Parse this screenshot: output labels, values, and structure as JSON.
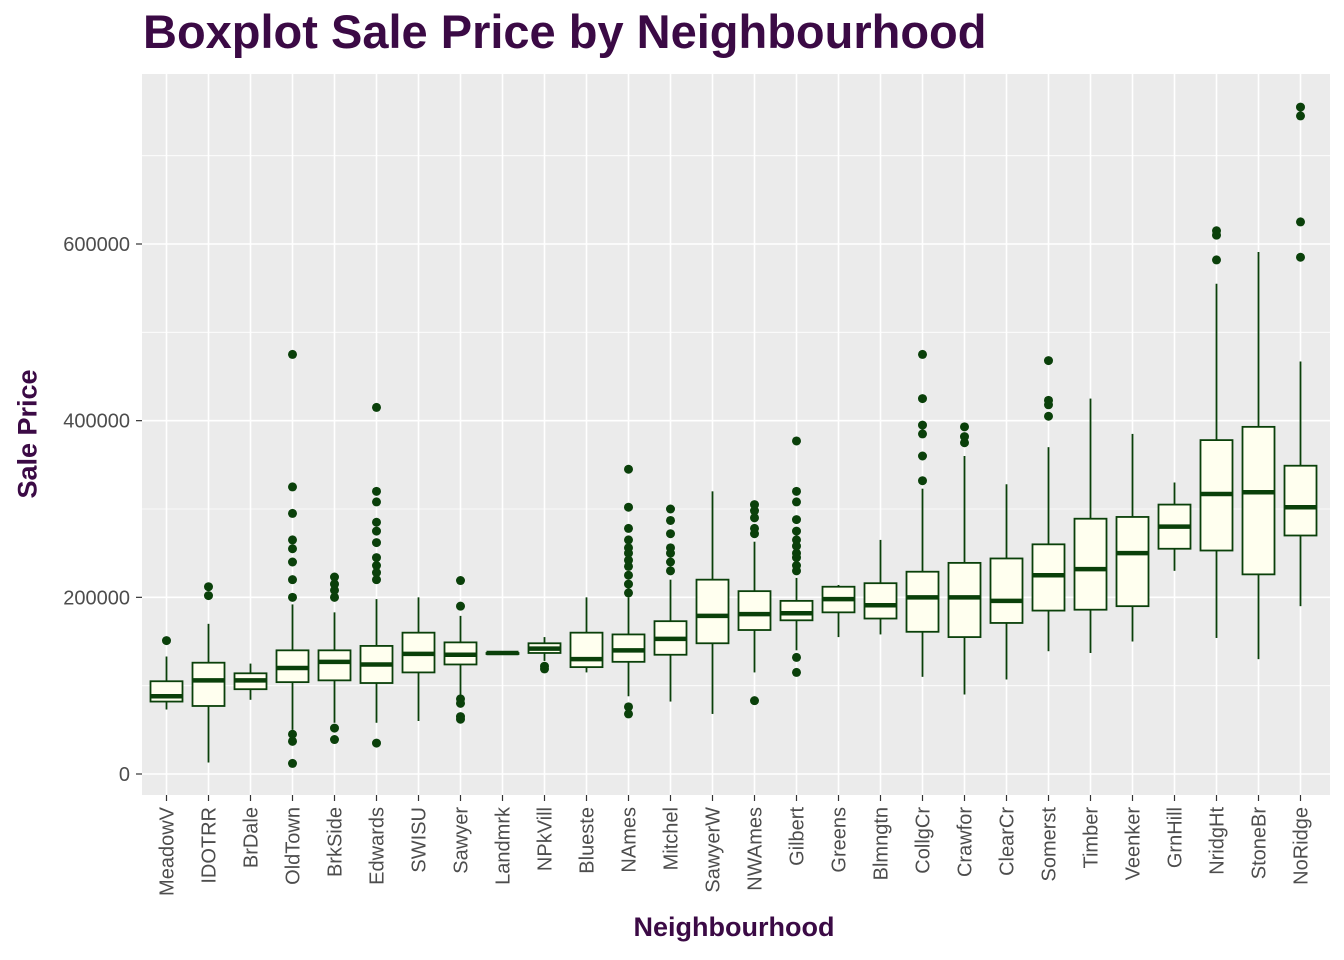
{
  "chart_data": {
    "type": "boxplot",
    "title": "Boxplot Sale Price by Neighbourhood",
    "xlabel": "Neighbourhood",
    "ylabel": "Sale Price",
    "ylim": [
      -20000,
      790000
    ],
    "yticks": [
      0,
      200000,
      400000,
      600000
    ],
    "ytick_labels": [
      "0",
      "200000",
      "400000",
      "600000"
    ],
    "grid": true,
    "colors": {
      "box_fill": "#ffffef",
      "stroke": "#0a400a",
      "panel": "#ebebeb",
      "grid": "#ffffff",
      "title": "#3b0a45"
    },
    "categories": [
      "MeadowV",
      "IDOTRR",
      "BrDale",
      "OldTown",
      "BrkSide",
      "Edwards",
      "SWISU",
      "Sawyer",
      "Landmrk",
      "NPkVill",
      "Blueste",
      "NAmes",
      "Mitchel",
      "SawyerW",
      "NWAmes",
      "Gilbert",
      "Greens",
      "Blmngtn",
      "CollgCr",
      "Crawfor",
      "ClearCr",
      "Somerst",
      "Timber",
      "Veenker",
      "GrnHill",
      "NridgHt",
      "StoneBr",
      "NoRidge"
    ],
    "boxes": [
      {
        "min": 73000,
        "q1": 82000,
        "median": 88000,
        "q3": 105000,
        "max": 133000,
        "outliers": [
          151000
        ]
      },
      {
        "min": 13000,
        "q1": 77000,
        "median": 106000,
        "q3": 126000,
        "max": 170000,
        "outliers": [
          202000,
          212000
        ]
      },
      {
        "min": 84000,
        "q1": 96000,
        "median": 106000,
        "q3": 114000,
        "max": 125000,
        "outliers": []
      },
      {
        "min": 50000,
        "q1": 104000,
        "median": 120000,
        "q3": 140000,
        "max": 192000,
        "outliers": [
          12000,
          37000,
          45000,
          200000,
          220000,
          240000,
          255000,
          265000,
          295000,
          325000,
          475000
        ]
      },
      {
        "min": 58000,
        "q1": 106000,
        "median": 127000,
        "q3": 140000,
        "max": 183000,
        "outliers": [
          39000,
          52000,
          200000,
          208000,
          215000,
          223000
        ]
      },
      {
        "min": 58000,
        "q1": 103000,
        "median": 124000,
        "q3": 145000,
        "max": 198000,
        "outliers": [
          35000,
          220000,
          228000,
          236000,
          245000,
          262000,
          275000,
          285000,
          308000,
          320000,
          415000
        ]
      },
      {
        "min": 60000,
        "q1": 115000,
        "median": 136000,
        "q3": 160000,
        "max": 200000,
        "outliers": []
      },
      {
        "min": 90000,
        "q1": 124000,
        "median": 135000,
        "q3": 149000,
        "max": 179000,
        "outliers": [
          62000,
          65000,
          80000,
          85000,
          190000,
          219000
        ]
      },
      {
        "min": 137000,
        "q1": 137000,
        "median": 137000,
        "q3": 137000,
        "max": 137000,
        "outliers": []
      },
      {
        "min": 128000,
        "q1": 137000,
        "median": 142000,
        "q3": 148000,
        "max": 155000,
        "outliers": [
          119000,
          122000
        ]
      },
      {
        "min": 115000,
        "q1": 121000,
        "median": 130000,
        "q3": 160000,
        "max": 200000,
        "outliers": []
      },
      {
        "min": 88000,
        "q1": 127000,
        "median": 140000,
        "q3": 158000,
        "max": 200000,
        "outliers": [
          68000,
          76000,
          205000,
          215000,
          225000,
          235000,
          242000,
          250000,
          256000,
          265000,
          278000,
          302000,
          345000
        ]
      },
      {
        "min": 82000,
        "q1": 135000,
        "median": 153000,
        "q3": 173000,
        "max": 220000,
        "outliers": [
          230000,
          240000,
          250000,
          256000,
          272000,
          287000,
          300000
        ]
      },
      {
        "min": 68000,
        "q1": 148000,
        "median": 179000,
        "q3": 220000,
        "max": 320000,
        "outliers": []
      },
      {
        "min": 115000,
        "q1": 163000,
        "median": 181000,
        "q3": 207000,
        "max": 263000,
        "outliers": [
          83000,
          272000,
          278000,
          290000,
          298000,
          305000
        ]
      },
      {
        "min": 140000,
        "q1": 174000,
        "median": 182000,
        "q3": 196000,
        "max": 222000,
        "outliers": [
          115000,
          132000,
          230000,
          236000,
          245000,
          250000,
          258000,
          265000,
          275000,
          288000,
          308000,
          320000,
          377000
        ]
      },
      {
        "min": 155000,
        "q1": 183000,
        "median": 198000,
        "q3": 212000,
        "max": 214000,
        "outliers": []
      },
      {
        "min": 158000,
        "q1": 176000,
        "median": 191000,
        "q3": 216000,
        "max": 265000,
        "outliers": []
      },
      {
        "min": 110000,
        "q1": 161000,
        "median": 200000,
        "q3": 229000,
        "max": 323000,
        "outliers": [
          332000,
          360000,
          385000,
          395000,
          425000,
          475000
        ]
      },
      {
        "min": 90000,
        "q1": 155000,
        "median": 200000,
        "q3": 239000,
        "max": 360000,
        "outliers": [
          375000,
          382000,
          393000
        ]
      },
      {
        "min": 107000,
        "q1": 171000,
        "median": 196000,
        "q3": 244000,
        "max": 328000,
        "outliers": []
      },
      {
        "min": 139000,
        "q1": 185000,
        "median": 225000,
        "q3": 260000,
        "max": 370000,
        "outliers": [
          405000,
          418000,
          423000,
          468000
        ]
      },
      {
        "min": 137000,
        "q1": 186000,
        "median": 232000,
        "q3": 289000,
        "max": 425000,
        "outliers": []
      },
      {
        "min": 150000,
        "q1": 190000,
        "median": 250000,
        "q3": 291000,
        "max": 385000,
        "outliers": []
      },
      {
        "min": 230000,
        "q1": 255000,
        "median": 280000,
        "q3": 305000,
        "max": 330000,
        "outliers": []
      },
      {
        "min": 154000,
        "q1": 253000,
        "median": 317000,
        "q3": 378000,
        "max": 555000,
        "outliers": [
          582000,
          610000,
          615000
        ]
      },
      {
        "min": 130000,
        "q1": 226000,
        "median": 319000,
        "q3": 393000,
        "max": 591000,
        "outliers": []
      },
      {
        "min": 190000,
        "q1": 270000,
        "median": 302000,
        "q3": 349000,
        "max": 467000,
        "outliers": [
          585000,
          625000,
          745000,
          755000
        ]
      }
    ]
  }
}
